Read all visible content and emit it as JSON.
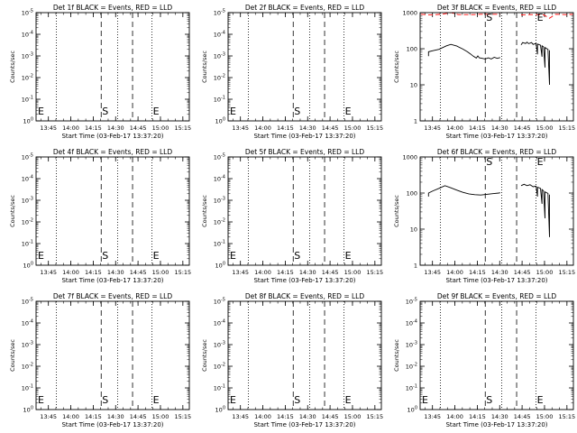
{
  "colors": {
    "events": "#000000",
    "lld": "#ff0000",
    "background": "#ffffff"
  },
  "chart_data": [
    {
      "type": "line",
      "title": "Det 1f BLACK = Events, RED = LLD",
      "xlabel": "Start Time (03-Feb-17 13:37:20)",
      "ylabel": "Counts/sec",
      "xlim": [
        -0.6,
        102
      ],
      "ylim_exp": [
        0,
        5
      ],
      "yscale": "log",
      "x_ticks": [
        "13:45",
        "14:00",
        "14:15",
        "14:30",
        "14:45",
        "15:00",
        "15:15"
      ],
      "y_ticks": [
        "10^0",
        "10^-1",
        "10^-2",
        "10^-3",
        "10^-4",
        "10^-5"
      ],
      "markers": [
        {
          "label": "E",
          "x": 0.0
        },
        {
          "label": "S",
          "x": 43.0
        },
        {
          "label": "E",
          "x": 77.0
        }
      ],
      "dotted_lines": [
        13.0,
        54.0,
        77.0
      ],
      "dashed_lines": [
        43.0,
        64.0
      ],
      "series": []
    },
    {
      "type": "line",
      "title": "Det 2f BLACK = Events, RED = LLD",
      "xlabel": "Start Time (03-Feb-17 13:37:20)",
      "ylabel": "Counts/sec",
      "xlim": [
        -0.6,
        102
      ],
      "ylim_exp": [
        0,
        5
      ],
      "yscale": "log",
      "x_ticks": [
        "13:45",
        "14:00",
        "14:15",
        "14:30",
        "14:45",
        "15:00",
        "15:15"
      ],
      "y_ticks": [
        "10^0",
        "10^-1",
        "10^-2",
        "10^-3",
        "10^-4",
        "10^-5"
      ],
      "markers": [
        {
          "label": "E",
          "x": 0.0
        },
        {
          "label": "S",
          "x": 43.0
        },
        {
          "label": "E",
          "x": 77.0
        }
      ],
      "dotted_lines": [
        13.0,
        54.0,
        77.0
      ],
      "dashed_lines": [
        43.0,
        64.0
      ],
      "series": []
    },
    {
      "type": "line",
      "title": "Det 3f BLACK = Events, RED = LLD",
      "xlabel": "Start Time (03-Feb-17 13:37:20)",
      "ylabel": "Counts/sec",
      "xlim": [
        -0.6,
        102
      ],
      "ylim_exp": [
        0,
        3
      ],
      "yscale": "log",
      "x_ticks": [
        "13:45",
        "14:00",
        "14:15",
        "14:30",
        "14:45",
        "15:00",
        "15:15"
      ],
      "y_ticks": [
        "1",
        "10",
        "100",
        "1000"
      ],
      "markers": [
        {
          "label": "S",
          "x": 43.0
        },
        {
          "label": "E",
          "x": 77.0
        }
      ],
      "dotted_lines": [
        13.0,
        54.0,
        77.0
      ],
      "dashed_lines": [
        43.0,
        64.0
      ],
      "series": [
        {
          "color": "#000000",
          "style": "solid",
          "points": [
            [
              5,
              62
            ],
            [
              5,
              82
            ],
            [
              8,
              88
            ],
            [
              12,
              96
            ],
            [
              17,
              120
            ],
            [
              20,
              132
            ],
            [
              24,
              118
            ],
            [
              28,
              98
            ],
            [
              31,
              82
            ],
            [
              33,
              72
            ],
            [
              35,
              62
            ],
            [
              37,
              55
            ],
            [
              38,
              63
            ],
            [
              39,
              56
            ],
            [
              41,
              54
            ],
            [
              43,
              52
            ],
            [
              45,
              56
            ],
            [
              47,
              52
            ],
            [
              49,
              58
            ],
            [
              51,
              54
            ],
            [
              53,
              57
            ]
          ]
        },
        {
          "color": "#000000",
          "style": "solid",
          "points": [
            [
              67,
              128
            ],
            [
              68,
              148
            ],
            [
              70,
              140
            ],
            [
              71,
              152
            ],
            [
              72,
              138
            ],
            [
              74,
              148
            ],
            [
              75,
              132
            ],
            [
              77,
              140
            ],
            [
              78,
              70
            ],
            [
              78,
              135
            ],
            [
              80,
              125
            ],
            [
              81,
              60
            ],
            [
              81,
              120
            ],
            [
              82,
              112
            ],
            [
              83,
              30
            ],
            [
              83,
              108
            ],
            [
              85,
              96
            ],
            [
              86,
              10
            ],
            [
              86,
              90
            ]
          ]
        },
        {
          "color": "#ff0000",
          "style": "dashed",
          "points": [
            [
              0,
              900
            ],
            [
              5,
              870
            ],
            [
              10,
              880
            ],
            [
              15,
              910
            ],
            [
              20,
              1000
            ],
            [
              25,
              880
            ],
            [
              30,
              880
            ],
            [
              35,
              880
            ],
            [
              40,
              900
            ],
            [
              45,
              900
            ],
            [
              53,
              900
            ]
          ]
        },
        {
          "color": "#ff0000",
          "style": "dashed",
          "points": [
            [
              67,
              860
            ],
            [
              72,
              880
            ],
            [
              77,
              880
            ],
            [
              82,
              870
            ],
            [
              86,
              700
            ],
            [
              90,
              900
            ],
            [
              97,
              880
            ],
            [
              102,
              900
            ]
          ]
        }
      ]
    },
    {
      "type": "line",
      "title": "Det 4f BLACK = Events, RED = LLD",
      "xlabel": "Start Time (03-Feb-17 13:37:20)",
      "ylabel": "Counts/sec",
      "xlim": [
        -0.6,
        102
      ],
      "ylim_exp": [
        0,
        5
      ],
      "yscale": "log",
      "x_ticks": [
        "13:45",
        "14:00",
        "14:15",
        "14:30",
        "14:45",
        "15:00",
        "15:15"
      ],
      "y_ticks": [
        "10^0",
        "10^-1",
        "10^-2",
        "10^-3",
        "10^-4",
        "10^-5"
      ],
      "markers": [
        {
          "label": "E",
          "x": 0.0
        },
        {
          "label": "S",
          "x": 43.0
        },
        {
          "label": "E",
          "x": 77.0
        }
      ],
      "dotted_lines": [
        13.0,
        54.0,
        77.0
      ],
      "dashed_lines": [
        43.0,
        64.0
      ],
      "series": []
    },
    {
      "type": "line",
      "title": "Det 5f BLACK = Events, RED = LLD",
      "xlabel": "Start Time (03-Feb-17 13:37:20)",
      "ylabel": "Counts/sec",
      "xlim": [
        -0.6,
        102
      ],
      "ylim_exp": [
        0,
        5
      ],
      "yscale": "log",
      "x_ticks": [
        "13:45",
        "14:00",
        "14:15",
        "14:30",
        "14:45",
        "15:00",
        "15:15"
      ],
      "y_ticks": [
        "10^0",
        "10^-1",
        "10^-2",
        "10^-3",
        "10^-4",
        "10^-5"
      ],
      "markers": [
        {
          "label": "E",
          "x": 0.0
        },
        {
          "label": "S",
          "x": 43.0
        },
        {
          "label": "E",
          "x": 77.0
        }
      ],
      "dotted_lines": [
        13.0,
        54.0,
        77.0
      ],
      "dashed_lines": [
        43.0,
        64.0
      ],
      "series": []
    },
    {
      "type": "line",
      "title": "Det 6f BLACK = Events, RED = LLD",
      "xlabel": "Start Time (03-Feb-17 13:37:20)",
      "ylabel": "Counts/sec",
      "xlim": [
        -0.6,
        102
      ],
      "ylim_exp": [
        0,
        3
      ],
      "yscale": "log",
      "x_ticks": [
        "13:45",
        "14:00",
        "14:15",
        "14:30",
        "14:45",
        "15:00",
        "15:15"
      ],
      "y_ticks": [
        "1",
        "10",
        "100",
        "1000"
      ],
      "markers": [
        {
          "label": "S",
          "x": 43.0
        },
        {
          "label": "E",
          "x": 77.0
        }
      ],
      "dotted_lines": [
        13.0,
        54.0,
        77.0
      ],
      "dashed_lines": [
        43.0,
        64.0
      ],
      "series": [
        {
          "color": "#000000",
          "style": "solid",
          "points": [
            [
              5,
              80
            ],
            [
              5,
              100
            ],
            [
              8,
              115
            ],
            [
              12,
              135
            ],
            [
              16,
              160
            ],
            [
              20,
              140
            ],
            [
              24,
              120
            ],
            [
              28,
              105
            ],
            [
              32,
              95
            ],
            [
              36,
              90
            ],
            [
              40,
              88
            ],
            [
              44,
              92
            ],
            [
              48,
              96
            ],
            [
              52,
              100
            ],
            [
              53,
              102
            ]
          ]
        },
        {
          "color": "#000000",
          "style": "solid",
          "points": [
            [
              67,
              160
            ],
            [
              69,
              175
            ],
            [
              71,
              160
            ],
            [
              73,
              170
            ],
            [
              75,
              150
            ],
            [
              77,
              155
            ],
            [
              78,
              80
            ],
            [
              78,
              145
            ],
            [
              80,
              135
            ],
            [
              81,
              50
            ],
            [
              81,
              125
            ],
            [
              82,
              115
            ],
            [
              83,
              20
            ],
            [
              83,
              108
            ],
            [
              85,
              98
            ],
            [
              86,
              6
            ],
            [
              86,
              90
            ]
          ]
        }
      ]
    },
    {
      "type": "line",
      "title": "Det 7f BLACK = Events, RED = LLD",
      "xlabel": "Start Time (03-Feb-17 13:37:20)",
      "ylabel": "Counts/sec",
      "xlim": [
        -0.6,
        102
      ],
      "ylim_exp": [
        0,
        5
      ],
      "yscale": "log",
      "x_ticks": [
        "13:45",
        "14:00",
        "14:15",
        "14:30",
        "14:45",
        "15:00",
        "15:15"
      ],
      "y_ticks": [
        "10^0",
        "10^-1",
        "10^-2",
        "10^-3",
        "10^-4",
        "10^-5"
      ],
      "markers": [
        {
          "label": "E",
          "x": 0.0
        },
        {
          "label": "S",
          "x": 43.0
        },
        {
          "label": "E",
          "x": 77.0
        }
      ],
      "dotted_lines": [
        13.0,
        54.0,
        77.0
      ],
      "dashed_lines": [
        43.0,
        64.0
      ],
      "series": []
    },
    {
      "type": "line",
      "title": "Det 8f BLACK = Events, RED = LLD",
      "xlabel": "Start Time (03-Feb-17 13:37:20)",
      "ylabel": "Counts/sec",
      "xlim": [
        -0.6,
        102
      ],
      "ylim_exp": [
        0,
        5
      ],
      "yscale": "log",
      "x_ticks": [
        "13:45",
        "14:00",
        "14:15",
        "14:30",
        "14:45",
        "15:00",
        "15:15"
      ],
      "y_ticks": [
        "10^0",
        "10^-1",
        "10^-2",
        "10^-3",
        "10^-4",
        "10^-5"
      ],
      "markers": [
        {
          "label": "E",
          "x": 0.0
        },
        {
          "label": "S",
          "x": 43.0
        },
        {
          "label": "E",
          "x": 77.0
        }
      ],
      "dotted_lines": [
        13.0,
        54.0,
        77.0
      ],
      "dashed_lines": [
        43.0,
        64.0
      ],
      "series": []
    },
    {
      "type": "line",
      "title": "Det 9f BLACK = Events, RED = LLD",
      "xlabel": "Start Time (03-Feb-17 13:37:20)",
      "ylabel": "Counts/sec",
      "xlim": [
        -0.6,
        102
      ],
      "ylim_exp": [
        0,
        5
      ],
      "yscale": "log",
      "x_ticks": [
        "13:45",
        "14:00",
        "14:15",
        "14:30",
        "14:45",
        "15:00",
        "15:15"
      ],
      "y_ticks": [
        "10^0",
        "10^-1",
        "10^-2",
        "10^-3",
        "10^-4",
        "10^-5"
      ],
      "markers": [
        {
          "label": "E",
          "x": 0.0
        },
        {
          "label": "S",
          "x": 43.0
        },
        {
          "label": "E",
          "x": 77.0
        }
      ],
      "dotted_lines": [
        13.0,
        54.0,
        77.0
      ],
      "dashed_lines": [
        43.0,
        64.0
      ],
      "series": []
    }
  ]
}
